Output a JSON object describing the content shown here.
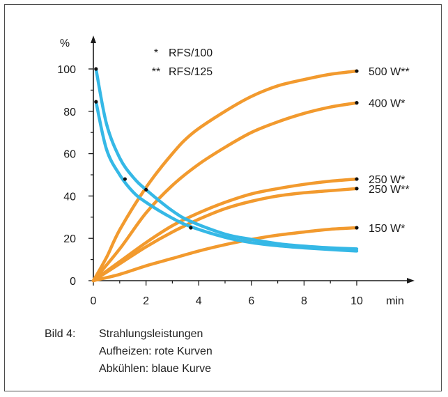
{
  "chart_data": {
    "type": "line",
    "xlabel": "min",
    "ylabel": "%",
    "xlim": [
      0,
      10.5
    ],
    "ylim": [
      0,
      110
    ],
    "xticks": [
      "0",
      "2",
      "4",
      "6",
      "8",
      "10"
    ],
    "yticks": [
      "0",
      "20",
      "40",
      "60",
      "80",
      "100"
    ],
    "grid": false,
    "legend": [
      {
        "marker": "*",
        "text": "RFS/100"
      },
      {
        "marker": "**",
        "text": "RFS/125"
      }
    ],
    "series": [
      {
        "name": "500 W**",
        "color": "#f29a2e",
        "x": [
          0,
          0.5,
          1,
          2,
          3,
          3.8,
          5,
          6,
          7,
          8,
          9,
          10
        ],
        "y": [
          0,
          11,
          24,
          44,
          60,
          70,
          80,
          87,
          92,
          95,
          97.5,
          99
        ]
      },
      {
        "name": "400 W*",
        "color": "#f29a2e",
        "x": [
          0,
          1,
          2,
          3,
          4,
          5,
          6,
          7,
          8,
          9,
          10
        ],
        "y": [
          0,
          15,
          32,
          45,
          55,
          63,
          70,
          75,
          79,
          82,
          84
        ]
      },
      {
        "name": "250 W*",
        "color": "#f29a2e",
        "x": [
          0,
          1,
          2,
          3,
          4,
          5,
          6,
          7,
          8,
          9,
          10
        ],
        "y": [
          0,
          9,
          18,
          26,
          32,
          37,
          41,
          43.5,
          45.5,
          47,
          48
        ]
      },
      {
        "name": "250 W**",
        "color": "#f29a2e",
        "x": [
          0,
          1,
          2,
          3,
          4,
          5,
          6,
          7,
          8,
          9,
          10
        ],
        "y": [
          0,
          8,
          16,
          23,
          29,
          34,
          37.5,
          40,
          41.5,
          42.5,
          43.5
        ]
      },
      {
        "name": "150 W*",
        "color": "#f29a2e",
        "x": [
          0,
          1,
          2,
          3,
          4,
          5,
          6,
          7,
          8,
          9,
          10
        ],
        "y": [
          0,
          3,
          7,
          10.5,
          14,
          17,
          19.5,
          21.5,
          23,
          24.3,
          25
        ]
      },
      {
        "color": "#35b8e6",
        "x": [
          0.1,
          0.5,
          1,
          1.5,
          2,
          3,
          3.7,
          5,
          6,
          7,
          8,
          9,
          10
        ],
        "y": [
          100,
          74,
          58,
          49,
          43,
          33,
          28,
          22,
          19.5,
          17.5,
          16.3,
          15.5,
          15
        ]
      },
      {
        "color": "#35b8e6",
        "x": [
          0.1,
          0.5,
          1,
          1.5,
          2,
          3,
          3.7,
          5,
          6,
          7,
          8,
          9,
          10
        ],
        "y": [
          84.5,
          62,
          50,
          42,
          37,
          29.5,
          25.5,
          20.5,
          18,
          16.5,
          15.5,
          14.7,
          14
        ]
      }
    ],
    "markers": [
      {
        "x": 0.1,
        "y": 100
      },
      {
        "x": 0.1,
        "y": 84.5
      },
      {
        "x": 1.2,
        "y": 48
      },
      {
        "x": 2.0,
        "y": 43
      },
      {
        "x": 3.7,
        "y": 25
      },
      {
        "x": 10,
        "y": 99
      },
      {
        "x": 10,
        "y": 84
      },
      {
        "x": 10,
        "y": 48
      },
      {
        "x": 10,
        "y": 43.5
      },
      {
        "x": 10,
        "y": 25
      }
    ]
  },
  "caption": {
    "number": "Bild 4:",
    "lines": [
      "Strahlungsleistungen",
      "Aufheizen: rote Kurven",
      "Abkühlen: blaue Kurve"
    ]
  }
}
